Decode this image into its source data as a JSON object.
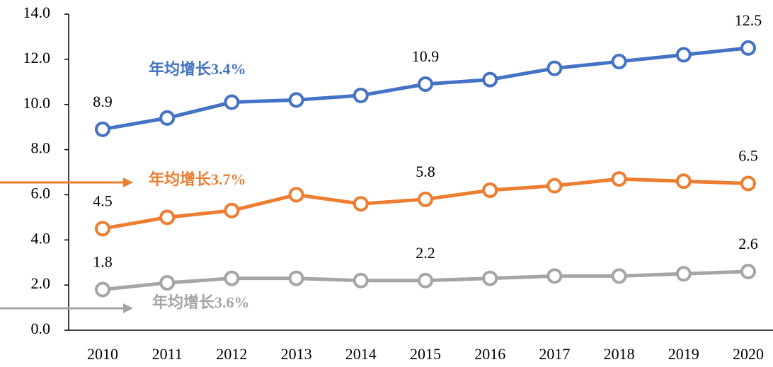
{
  "chart_data": {
    "type": "line",
    "categories": [
      "2010",
      "2011",
      "2012",
      "2013",
      "2014",
      "2015",
      "2016",
      "2017",
      "2018",
      "2019",
      "2020"
    ],
    "ylim": [
      0,
      14
    ],
    "yticks": [
      {
        "value": 0,
        "label": "0.0"
      },
      {
        "value": 2,
        "label": "2.0"
      },
      {
        "value": 4,
        "label": "4.0"
      },
      {
        "value": 6,
        "label": "6.0"
      },
      {
        "value": 8,
        "label": "8.0"
      },
      {
        "value": 10,
        "label": "10.0"
      },
      {
        "value": 12,
        "label": "12.0"
      },
      {
        "value": 14,
        "label": "14.0"
      }
    ],
    "grid": false,
    "series": [
      {
        "color": "#4472c4",
        "annotation": "年均增长3.4%",
        "values": [
          8.9,
          9.4,
          10.1,
          10.2,
          10.4,
          10.9,
          11.1,
          11.6,
          11.9,
          12.2,
          12.5
        ],
        "value_labels": [
          "8.9",
          null,
          null,
          null,
          null,
          "10.9",
          null,
          null,
          null,
          null,
          "12.5"
        ]
      },
      {
        "color": "#ed7d31",
        "annotation": "年均增长3.7%",
        "values": [
          4.5,
          5.0,
          5.3,
          6.0,
          5.6,
          5.8,
          6.2,
          6.4,
          6.7,
          6.6,
          6.5
        ],
        "value_labels": [
          "4.5",
          null,
          null,
          null,
          null,
          "5.8",
          null,
          null,
          null,
          null,
          "6.5"
        ]
      },
      {
        "color": "#a5a5a5",
        "annotation": "年均增长3.6%",
        "values": [
          1.8,
          2.1,
          2.3,
          2.3,
          2.2,
          2.2,
          2.3,
          2.4,
          2.4,
          2.5,
          2.6
        ],
        "value_labels": [
          "1.8",
          null,
          null,
          null,
          null,
          "2.2",
          null,
          null,
          null,
          null,
          "2.6"
        ]
      }
    ]
  }
}
